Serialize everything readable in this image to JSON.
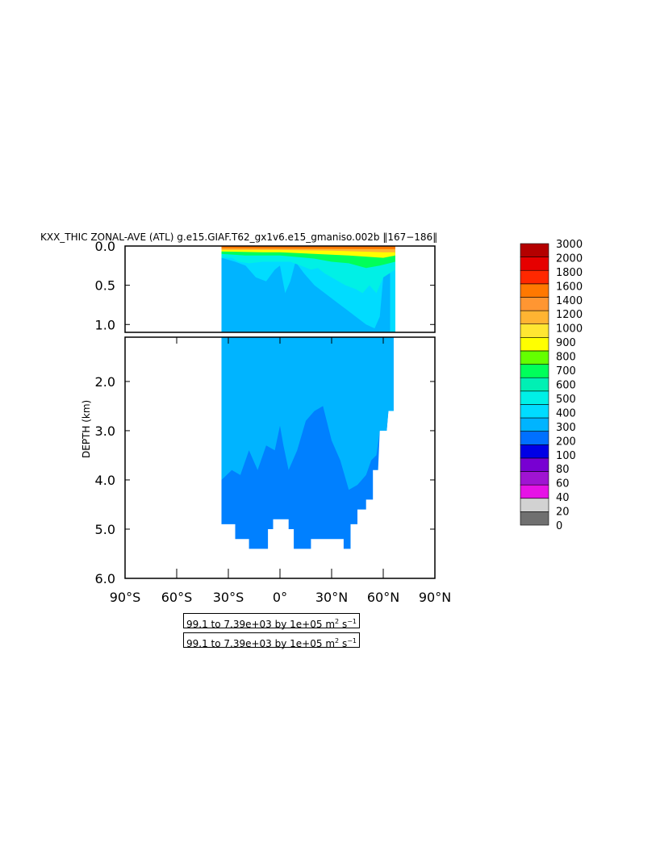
{
  "chart_data": {
    "type": "heatmap",
    "title": "KXX_THIC ZONAL-AVE (ATL) g.e15.GIAF.T62_gx1v6.e15_gmaniso.002b ‖167−186‖",
    "ylabel": "DEPTH (km)",
    "xlim": [
      -90,
      90
    ],
    "x_ticks": [
      -90,
      -60,
      -30,
      0,
      30,
      60,
      90
    ],
    "x_tick_labels": [
      "90°S",
      "60°S",
      "30°S",
      "0°",
      "30°N",
      "60°N",
      "90°N"
    ],
    "panels": [
      {
        "name": "upper",
        "ylim": [
          0.0,
          1.1
        ],
        "y_ticks": [
          0.0,
          0.5,
          1.0
        ],
        "y_tick_labels": [
          "0.0",
          "0.5",
          "1.0"
        ]
      },
      {
        "name": "lower",
        "ylim": [
          1.1,
          6.0
        ],
        "y_ticks": [
          2.0,
          3.0,
          4.0,
          5.0,
          6.0
        ],
        "y_tick_labels": [
          "2.0",
          "3.0",
          "4.0",
          "5.0",
          "6.0"
        ]
      }
    ],
    "colorbar": {
      "levels": [
        0,
        20,
        40,
        60,
        80,
        100,
        200,
        300,
        400,
        500,
        600,
        700,
        800,
        900,
        1000,
        1200,
        1400,
        1600,
        1800,
        2000,
        3000
      ],
      "level_labels": [
        "0",
        "20",
        "40",
        "60",
        "80",
        "100",
        "200",
        "300",
        "400",
        "500",
        "600",
        "700",
        "800",
        "900",
        "1000",
        "1200",
        "1400",
        "1600",
        "1800",
        "2000",
        "3000"
      ],
      "colors": [
        "#707070",
        "#d2d2d2",
        "#e612e6",
        "#a014d2",
        "#7800d2",
        "#0000e6",
        "#0070ff",
        "#00b4ff",
        "#00dcff",
        "#00f0e6",
        "#00f0b4",
        "#00ff5a",
        "#64ff00",
        "#ffff00",
        "#ffe632",
        "#ffb432",
        "#ff9632",
        "#ff7800",
        "#ff2800",
        "#e60000",
        "#b40000"
      ]
    },
    "fields": [
      {
        "name": "bottom-200-300",
        "color": "#0080ff",
        "top": [
          [
            -34,
            1.1
          ],
          [
            66,
            1.1
          ],
          [
            66,
            2.6
          ],
          [
            63,
            2.6
          ],
          [
            62,
            3.0
          ],
          [
            58,
            3.0
          ],
          [
            57,
            3.8
          ],
          [
            54,
            3.8
          ],
          [
            54,
            4.4
          ],
          [
            50,
            4.4
          ],
          [
            50,
            4.6
          ],
          [
            45,
            4.6
          ],
          [
            45,
            4.9
          ],
          [
            41,
            4.9
          ],
          [
            41,
            5.4
          ],
          [
            37,
            5.4
          ],
          [
            37,
            5.2
          ],
          [
            18,
            5.2
          ],
          [
            18,
            5.4
          ],
          [
            8,
            5.4
          ],
          [
            8,
            5.0
          ],
          [
            5,
            5.0
          ],
          [
            5,
            4.8
          ],
          [
            -4,
            4.8
          ],
          [
            -4,
            5.0
          ],
          [
            -7,
            5.0
          ],
          [
            -7,
            5.4
          ],
          [
            -18,
            5.4
          ],
          [
            -18,
            5.2
          ],
          [
            -26,
            5.2
          ],
          [
            -26,
            4.9
          ],
          [
            -34,
            4.9
          ]
        ]
      },
      {
        "name": "mid-300-400",
        "color": "#00b4ff",
        "top": [
          [
            -34,
            1.1
          ],
          [
            66,
            1.1
          ],
          [
            66,
            2.6
          ],
          [
            63,
            2.6
          ],
          [
            62,
            3.0
          ],
          [
            58,
            3.0
          ],
          [
            56,
            3.5
          ],
          [
            53,
            3.6
          ],
          [
            50,
            3.9
          ],
          [
            45,
            4.1
          ],
          [
            40,
            4.2
          ],
          [
            35,
            3.6
          ],
          [
            30,
            3.2
          ],
          [
            25,
            2.5
          ],
          [
            20,
            2.6
          ],
          [
            15,
            2.8
          ],
          [
            10,
            3.4
          ],
          [
            5,
            3.8
          ],
          [
            2,
            3.3
          ],
          [
            0,
            2.9
          ],
          [
            -3,
            3.4
          ],
          [
            -8,
            3.3
          ],
          [
            -13,
            3.8
          ],
          [
            -18,
            3.4
          ],
          [
            -23,
            3.9
          ],
          [
            -28,
            3.8
          ],
          [
            -34,
            4.0
          ]
        ]
      },
      {
        "name": "upper-300-400",
        "color": "#00b4ff",
        "top": [
          [
            -34,
            0.0
          ],
          [
            67,
            0.0
          ],
          [
            67,
            1.1
          ],
          [
            -34,
            1.1
          ]
        ]
      },
      {
        "name": "upper-400-500",
        "color": "#00dcff",
        "top": [
          [
            -34,
            0.15
          ],
          [
            -26,
            0.2
          ],
          [
            -20,
            0.25
          ],
          [
            -14,
            0.4
          ],
          [
            -8,
            0.45
          ],
          [
            -3,
            0.3
          ],
          [
            0,
            0.25
          ],
          [
            3,
            0.6
          ],
          [
            6,
            0.45
          ],
          [
            9,
            0.2
          ],
          [
            14,
            0.35
          ],
          [
            20,
            0.5
          ],
          [
            26,
            0.6
          ],
          [
            32,
            0.7
          ],
          [
            38,
            0.8
          ],
          [
            44,
            0.9
          ],
          [
            50,
            1.0
          ],
          [
            55,
            1.05
          ],
          [
            58,
            0.9
          ],
          [
            60,
            0.4
          ],
          [
            64,
            0.3
          ],
          [
            64,
            1.1
          ],
          [
            67,
            1.1
          ],
          [
            67,
            0.0
          ],
          [
            -34,
            0.0
          ]
        ]
      },
      {
        "name": "upper-500-600",
        "color": "#00f0e6",
        "top": [
          [
            -34,
            0.15
          ],
          [
            -28,
            0.15
          ],
          [
            -24,
            0.2
          ],
          [
            -18,
            0.22
          ],
          [
            -10,
            0.2
          ],
          [
            -4,
            0.2
          ],
          [
            0,
            0.2
          ],
          [
            6,
            0.2
          ],
          [
            12,
            0.25
          ],
          [
            18,
            0.3
          ],
          [
            22,
            0.28
          ],
          [
            26,
            0.35
          ],
          [
            30,
            0.4
          ],
          [
            34,
            0.45
          ],
          [
            38,
            0.5
          ],
          [
            44,
            0.55
          ],
          [
            48,
            0.6
          ],
          [
            52,
            0.5
          ],
          [
            56,
            0.6
          ],
          [
            60,
            0.4
          ],
          [
            67,
            0.3
          ],
          [
            67,
            0.0
          ],
          [
            -34,
            0.0
          ]
        ]
      },
      {
        "name": "upper-700-800",
        "color": "#00ff5a",
        "top": [
          [
            -34,
            0.1
          ],
          [
            -20,
            0.12
          ],
          [
            -8,
            0.12
          ],
          [
            0,
            0.12
          ],
          [
            10,
            0.14
          ],
          [
            20,
            0.16
          ],
          [
            30,
            0.2
          ],
          [
            40,
            0.22
          ],
          [
            50,
            0.28
          ],
          [
            58,
            0.25
          ],
          [
            67,
            0.2
          ],
          [
            67,
            0.0
          ],
          [
            -34,
            0.0
          ]
        ]
      },
      {
        "name": "upper-900-1000",
        "color": "#ffff00",
        "top": [
          [
            -34,
            0.07
          ],
          [
            -10,
            0.08
          ],
          [
            0,
            0.08
          ],
          [
            20,
            0.1
          ],
          [
            40,
            0.12
          ],
          [
            60,
            0.15
          ],
          [
            67,
            0.12
          ],
          [
            67,
            0.0
          ],
          [
            -34,
            0.0
          ]
        ]
      },
      {
        "name": "upper-1200-1400",
        "color": "#ffb432",
        "top": [
          [
            -34,
            0.05
          ],
          [
            0,
            0.05
          ],
          [
            30,
            0.06
          ],
          [
            60,
            0.08
          ],
          [
            67,
            0.08
          ],
          [
            67,
            0.0
          ],
          [
            -34,
            0.0
          ]
        ]
      },
      {
        "name": "upper-1600-1800",
        "color": "#ff7800",
        "top": [
          [
            -34,
            0.03
          ],
          [
            67,
            0.04
          ],
          [
            67,
            0.0
          ],
          [
            -34,
            0.0
          ]
        ]
      }
    ],
    "ranges": [
      "99.1 to 7.39e+03 by 1e+05 m",
      "99.1 to 7.39e+03 by 1e+05 m"
    ],
    "range_unit_exponent": "2",
    "range_unit_tail": "s",
    "range_unit_tail_exponent": "−1"
  }
}
